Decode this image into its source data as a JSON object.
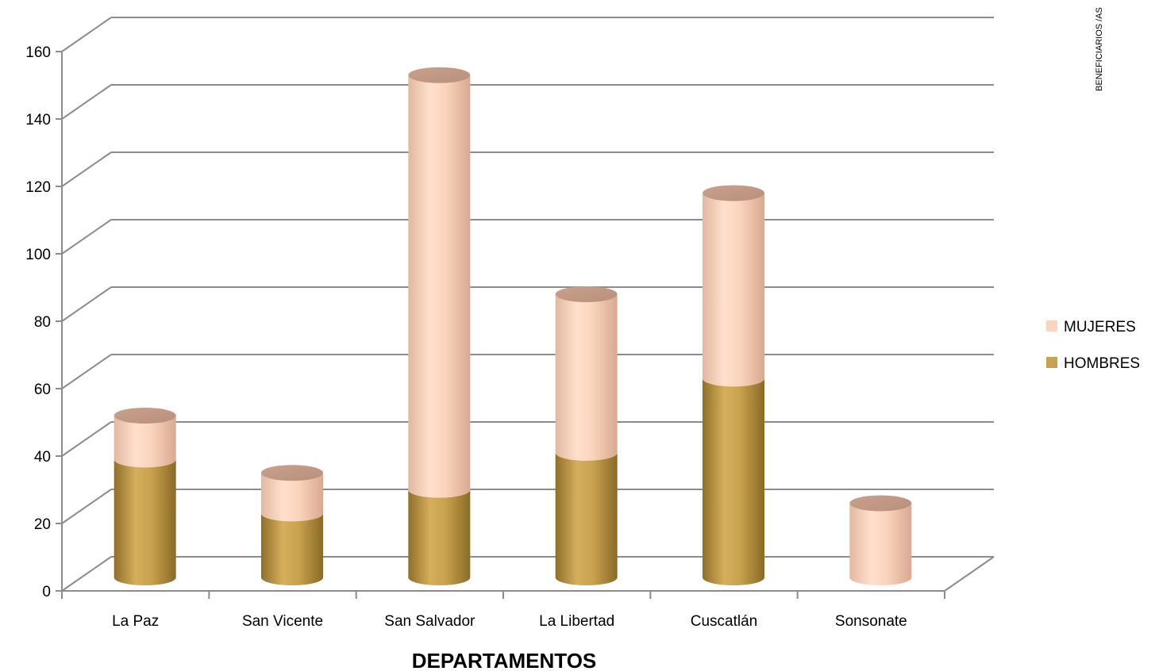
{
  "chart_data": {
    "type": "bar",
    "stacked": true,
    "style": "3d-cylinder",
    "categories": [
      "La Paz",
      "San Vicente",
      "San Salvador",
      "La Libertad",
      "Cuscatlán",
      "Sonsonate"
    ],
    "series": [
      {
        "name": "HOMBRES",
        "values": [
          35,
          19,
          26,
          37,
          59,
          0
        ],
        "color": "#C9A24E"
      },
      {
        "name": "MUJERES",
        "values": [
          13,
          12,
          123,
          47,
          55,
          22
        ],
        "color": "#FAD4BC"
      }
    ],
    "xlabel": "DEPARTAMENTOS",
    "ylabel": "BENEFICIARIOS /AS",
    "ylim": [
      0,
      160
    ],
    "yticks": [
      0,
      20,
      40,
      60,
      80,
      100,
      120,
      140,
      160
    ],
    "grid": true,
    "legend": "right"
  }
}
